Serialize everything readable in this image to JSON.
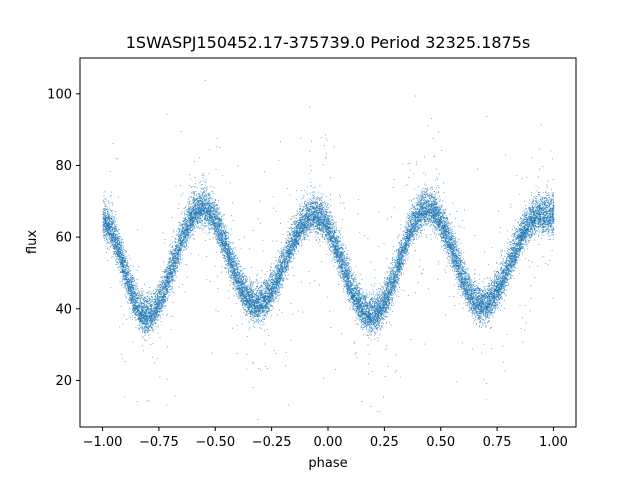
{
  "chart_data": {
    "type": "scatter",
    "title": "1SWASPJ150452.17-375739.0 Period 32325.1875s",
    "xlabel": "phase",
    "ylabel": "flux",
    "xlim": [
      -1.1,
      1.1
    ],
    "ylim": [
      7,
      110
    ],
    "xticks": [
      -1.0,
      -0.75,
      -0.5,
      -0.25,
      0.0,
      0.25,
      0.5,
      0.75,
      1.0
    ],
    "xtick_labels": [
      "−1.00",
      "−0.75",
      "−0.50",
      "−0.25",
      "0.00",
      "0.25",
      "0.50",
      "0.75",
      "1.00"
    ],
    "yticks": [
      20,
      40,
      60,
      80,
      100
    ],
    "ytick_labels": [
      "20",
      "40",
      "60",
      "80",
      "100"
    ],
    "grid": false,
    "color": "#1f77b4",
    "series": [
      {
        "x_range": [
          -1.0,
          1.0
        ],
        "points": 22000,
        "maxima": [
          {
            "x": -1.0,
            "y": 64
          },
          {
            "x": -0.56,
            "y": 68
          },
          {
            "x": -0.06,
            "y": 66
          },
          {
            "x": 0.44,
            "y": 68
          },
          {
            "x": 0.94,
            "y": 66
          }
        ],
        "minima": [
          {
            "x": -0.81,
            "y": 38
          },
          {
            "x": -0.32,
            "y": 41
          },
          {
            "x": 0.19,
            "y": 38
          },
          {
            "x": 0.68,
            "y": 41
          }
        ],
        "scatter_sd": 2.5
      }
    ]
  }
}
